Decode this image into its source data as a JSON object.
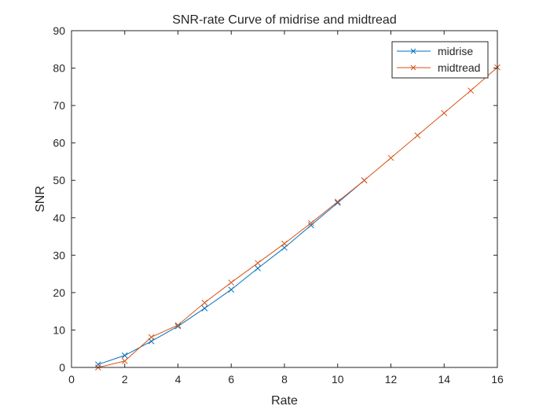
{
  "chart_data": {
    "type": "line",
    "title": "SNR-rate Curve of midrise and midtread",
    "xlabel": "Rate",
    "ylabel": "SNR",
    "xlim": [
      0,
      16
    ],
    "ylim": [
      0,
      90
    ],
    "xticks": [
      0,
      2,
      4,
      6,
      8,
      10,
      12,
      14,
      16
    ],
    "yticks": [
      0,
      10,
      20,
      30,
      40,
      50,
      60,
      70,
      80,
      90
    ],
    "grid": false,
    "legend_position": "top-right",
    "marker": "x",
    "series": [
      {
        "name": "midrise",
        "color": "#0072BD",
        "x": [
          1,
          2,
          3,
          4,
          5,
          6,
          7,
          8,
          9,
          10,
          11
        ],
        "y": [
          0.8,
          3.2,
          7.0,
          11.0,
          15.8,
          20.8,
          26.5,
          32.0,
          38.0,
          44.0,
          50.0
        ]
      },
      {
        "name": "midtread",
        "color": "#D95319",
        "x": [
          1,
          2,
          3,
          4,
          5,
          6,
          7,
          8,
          9,
          10,
          11,
          12,
          13,
          14,
          15,
          16
        ],
        "y": [
          0.0,
          1.7,
          8.1,
          11.3,
          17.3,
          22.7,
          27.9,
          33.1,
          38.6,
          44.3,
          50.0,
          56.0,
          62.0,
          68.0,
          74.0,
          80.2
        ]
      }
    ]
  }
}
